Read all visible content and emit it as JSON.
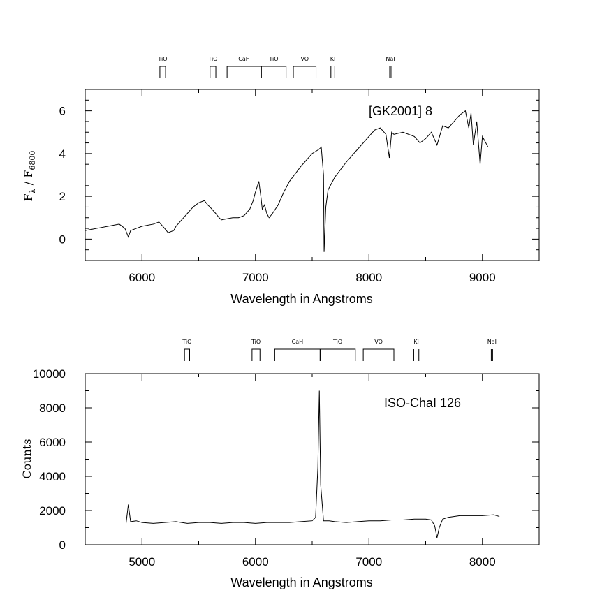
{
  "chart_data": [
    {
      "type": "line",
      "panel": "top",
      "annotation": "[GK2001] 8",
      "xlabel": "Wavelength in Angstroms",
      "ylabel_main": "F",
      "ylabel_sub1": "λ",
      "ylabel_slash": " / F",
      "ylabel_sub2": "6800",
      "xlim": [
        5500,
        9500
      ],
      "ylim": [
        -1,
        7
      ],
      "xticks": [
        6000,
        7000,
        8000,
        9000
      ],
      "yticks": [
        0,
        2,
        4,
        6
      ],
      "grid": false,
      "bands": [
        {
          "label": "TiO",
          "start": 6158,
          "end": 6208
        },
        {
          "label": "TiO",
          "start": 6600,
          "end": 6651
        },
        {
          "label": "CaH",
          "start": 6750,
          "end": 7050
        },
        {
          "label": "TiO",
          "start": 7053,
          "end": 7270
        },
        {
          "label": "VO",
          "start": 7334,
          "end": 7534
        },
        {
          "label": "KI",
          "start": 7665,
          "end": 7699,
          "lines": true
        },
        {
          "label": "NaI",
          "start": 8183,
          "end": 8195,
          "lines": true
        }
      ],
      "series": [
        {
          "x": [
            5500,
            5600,
            5700,
            5800,
            5850,
            5880,
            5900,
            5950,
            6000,
            6100,
            6150,
            6200,
            6230,
            6280,
            6300,
            6350,
            6400,
            6450,
            6500,
            6550,
            6580,
            6600,
            6650,
            6680,
            6700,
            6750,
            6800,
            6850,
            6900,
            6950,
            6980,
            7000,
            7030,
            7050,
            7060,
            7080,
            7100,
            7120,
            7150,
            7200,
            7250,
            7300,
            7400,
            7500,
            7560,
            7580,
            7600,
            7605,
            7620,
            7640,
            7700,
            7800,
            7900,
            8000,
            8050,
            8100,
            8150,
            8180,
            8200,
            8220,
            8300,
            8400,
            8450,
            8500,
            8550,
            8600,
            8650,
            8700,
            8750,
            8800,
            8850,
            8880,
            8900,
            8920,
            8950,
            8980,
            9000,
            9020,
            9050
          ],
          "y": [
            0.4,
            0.5,
            0.6,
            0.7,
            0.5,
            0.1,
            0.4,
            0.5,
            0.6,
            0.7,
            0.8,
            0.5,
            0.3,
            0.4,
            0.6,
            0.9,
            1.2,
            1.5,
            1.7,
            1.8,
            1.6,
            1.5,
            1.2,
            1.0,
            0.9,
            0.95,
            1.0,
            1.0,
            1.1,
            1.4,
            1.8,
            2.2,
            2.7,
            1.9,
            1.4,
            1.6,
            1.2,
            1.0,
            1.2,
            1.6,
            2.2,
            2.7,
            3.4,
            4.0,
            4.2,
            4.3,
            3.0,
            -0.6,
            1.5,
            2.3,
            2.9,
            3.6,
            4.2,
            4.8,
            5.1,
            5.2,
            4.9,
            3.8,
            5.0,
            4.9,
            5.0,
            4.8,
            4.5,
            4.7,
            5.0,
            4.4,
            5.3,
            5.2,
            5.5,
            5.8,
            6.0,
            5.2,
            5.9,
            4.4,
            5.5,
            3.5,
            4.8,
            4.6,
            4.3
          ]
        }
      ]
    },
    {
      "type": "line",
      "panel": "bottom",
      "annotation": "ISO-ChaI 126",
      "xlabel": "Wavelength in Angstroms",
      "ylabel": "Counts",
      "xlim": [
        4500,
        8500
      ],
      "ylim": [
        0,
        10000
      ],
      "xticks": [
        5000,
        6000,
        7000,
        8000
      ],
      "yticks": [
        0,
        2000,
        4000,
        6000,
        8000,
        10000
      ],
      "grid": false,
      "bands": [
        {
          "label": "TiO",
          "start": 5375,
          "end": 5420
        },
        {
          "label": "TiO",
          "start": 5970,
          "end": 6040
        },
        {
          "label": "CaH",
          "start": 6170,
          "end": 6570
        },
        {
          "label": "TiO",
          "start": 6570,
          "end": 6880
        },
        {
          "label": "VO",
          "start": 6950,
          "end": 7220
        },
        {
          "label": "KI",
          "start": 7395,
          "end": 7440,
          "lines": true
        },
        {
          "label": "NaI",
          "start": 8078,
          "end": 8090,
          "lines": true
        }
      ],
      "series": [
        {
          "x": [
            4860,
            4880,
            4900,
            4950,
            5000,
            5100,
            5200,
            5300,
            5400,
            5500,
            5600,
            5700,
            5800,
            5900,
            6000,
            6100,
            6200,
            6300,
            6400,
            6500,
            6530,
            6550,
            6563,
            6575,
            6600,
            6650,
            6700,
            6800,
            6900,
            7000,
            7100,
            7200,
            7300,
            7400,
            7500,
            7550,
            7580,
            7600,
            7620,
            7650,
            7700,
            7800,
            7900,
            8000,
            8100,
            8150
          ],
          "y": [
            1250,
            2350,
            1350,
            1400,
            1300,
            1250,
            1300,
            1350,
            1250,
            1300,
            1300,
            1250,
            1300,
            1300,
            1250,
            1300,
            1300,
            1300,
            1350,
            1400,
            1600,
            4500,
            9000,
            3500,
            1400,
            1400,
            1350,
            1300,
            1350,
            1400,
            1400,
            1450,
            1450,
            1500,
            1500,
            1450,
            1100,
            400,
            1000,
            1500,
            1600,
            1700,
            1700,
            1700,
            1750,
            1650
          ]
        }
      ]
    }
  ]
}
